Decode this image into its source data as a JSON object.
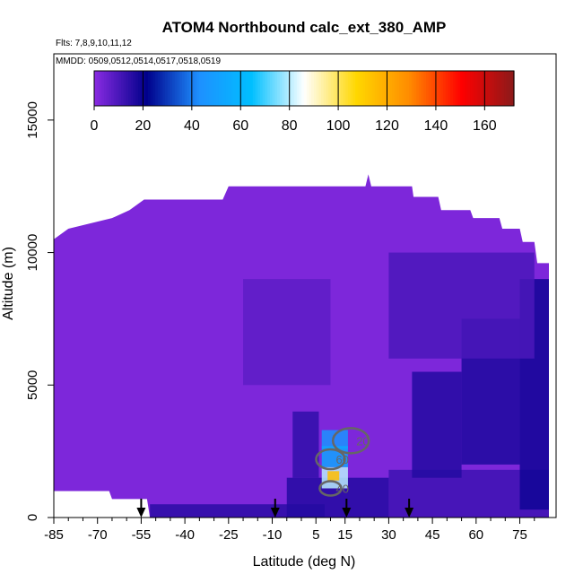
{
  "chart_data": {
    "type": "heatmap",
    "title": "ATOM4 Northbound calc_ext_380_AMP",
    "flights_label": "Flts: 7,8,9,10,11,12",
    "dates_label": "MMDD: 0509,0512,0514,0517,0518,0519",
    "xlabel": "Latitude (deg N)",
    "ylabel": "Altitude (m)",
    "xlim": [
      -85,
      85
    ],
    "ylim": [
      0,
      17500
    ],
    "x_ticks": [
      -85,
      -70,
      -55,
      -40,
      -25,
      -10,
      5,
      15,
      30,
      45,
      60,
      75
    ],
    "x_minor_ticks": [
      -80,
      -75,
      -65,
      -60,
      -50,
      -45,
      -35,
      -30,
      -20,
      -15,
      -5,
      0,
      10,
      20,
      25,
      35,
      40,
      50,
      55,
      65,
      70,
      80
    ],
    "y_ticks": [
      0,
      5000,
      10000,
      15000
    ],
    "colorbar": {
      "min": 0,
      "max": 172,
      "ticks": [
        0,
        20,
        40,
        60,
        80,
        100,
        120,
        140,
        160
      ],
      "colors": [
        "#8a2be2",
        "#00008b",
        "#1e90ff",
        "#00bfff",
        "#ffffff",
        "#ffd700",
        "#ff8c00",
        "#ff0000",
        "#8b1a1a"
      ]
    },
    "background_value": 2,
    "profile_top": [
      [
        -85,
        10500
      ],
      [
        -80,
        10900
      ],
      [
        -65,
        11300
      ],
      [
        -59,
        11600
      ],
      [
        -54,
        12000
      ],
      [
        -50,
        12000
      ],
      [
        -27,
        12000
      ],
      [
        -25,
        12500
      ],
      [
        3,
        12500
      ],
      [
        5,
        12500
      ],
      [
        22,
        12500
      ],
      [
        23,
        12950
      ],
      [
        24,
        12500
      ],
      [
        38,
        12500
      ],
      [
        38.5,
        12100
      ],
      [
        47,
        12100
      ],
      [
        48,
        11600
      ],
      [
        58,
        11600
      ],
      [
        59,
        11300
      ],
      [
        68,
        11300
      ],
      [
        69,
        10900
      ],
      [
        75,
        10900
      ],
      [
        76,
        10400
      ],
      [
        80,
        10400
      ],
      [
        81,
        9600
      ],
      [
        85,
        9600
      ]
    ],
    "profile_bottom": [
      [
        -85,
        1000
      ],
      [
        -66,
        1000
      ],
      [
        -65,
        700
      ],
      [
        -53,
        700
      ],
      [
        -52,
        0
      ],
      [
        85,
        0
      ]
    ],
    "enhanced_regions": [
      {
        "x": [
          -52,
          8
        ],
        "y": [
          0,
          500
        ],
        "value": 15
      },
      {
        "x": [
          -5,
          30
        ],
        "y": [
          0,
          1500
        ],
        "value": 16
      },
      {
        "x": [
          -3,
          6
        ],
        "y": [
          1500,
          4000
        ],
        "value": 14
      },
      {
        "x": [
          30,
          85
        ],
        "y": [
          0,
          1800
        ],
        "value": 12
      },
      {
        "x": [
          38,
          55
        ],
        "y": [
          1500,
          5500
        ],
        "value": 16
      },
      {
        "x": [
          55,
          75
        ],
        "y": [
          2000,
          7500
        ],
        "value": 17
      },
      {
        "x": [
          75,
          85
        ],
        "y": [
          300,
          9000
        ],
        "value": 19
      },
      {
        "x": [
          30,
          80
        ],
        "y": [
          6000,
          10000
        ],
        "value": 10
      },
      {
        "x": [
          -20,
          10
        ],
        "y": [
          5000,
          9000
        ],
        "value": 7
      },
      {
        "x": [
          7,
          16
        ],
        "y": [
          2600,
          3300
        ],
        "value": 45
      },
      {
        "x": [
          7,
          16
        ],
        "y": [
          1900,
          2700
        ],
        "value": 52
      },
      {
        "x": [
          7,
          16
        ],
        "y": [
          1100,
          1900
        ],
        "value": 80
      },
      {
        "x": [
          9,
          13
        ],
        "y": [
          1400,
          1750
        ],
        "value": 115
      }
    ],
    "contours": [
      {
        "label": "20",
        "x": 17,
        "y": 2900
      },
      {
        "label": "60",
        "x": 10,
        "y": 2200
      },
      {
        "label": "40",
        "x": 10,
        "y": 1100
      }
    ],
    "flight_markers": [
      -55,
      -9,
      15.5,
      37
    ]
  }
}
